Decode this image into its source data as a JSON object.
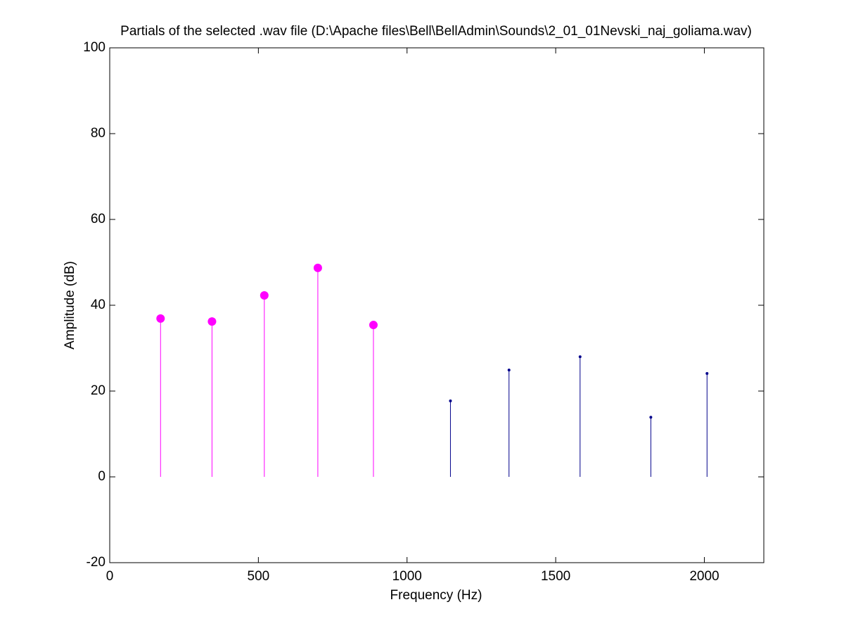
{
  "chart_data": {
    "type": "stem",
    "title": "Partials of the selected .wav file (D:\\Apache files\\Bell\\BellAdmin\\Sounds\\2_01_01Nevski_naj_goliama.wav)",
    "x_label": "Frequency (Hz)",
    "y_label": "Amplitude (dB)",
    "xlim": [
      0,
      2200
    ],
    "ylim": [
      -20,
      100
    ],
    "xticks": [
      0,
      500,
      1000,
      1500,
      2000
    ],
    "yticks": [
      -20,
      0,
      20,
      40,
      60,
      80,
      100
    ],
    "grid": false,
    "series": [
      {
        "color": "#ff00ff",
        "marker_size": 6,
        "x": [
          171,
          344,
          520,
          700,
          887
        ],
        "values": [
          36.9,
          36.2,
          42.3,
          48.7,
          35.4
        ]
      },
      {
        "color": "#00008b",
        "marker_size": 2,
        "x": [
          1146,
          1343,
          1582,
          1820,
          2009
        ],
        "values": [
          17.7,
          24.9,
          28.0,
          13.9,
          24.1
        ]
      }
    ]
  }
}
